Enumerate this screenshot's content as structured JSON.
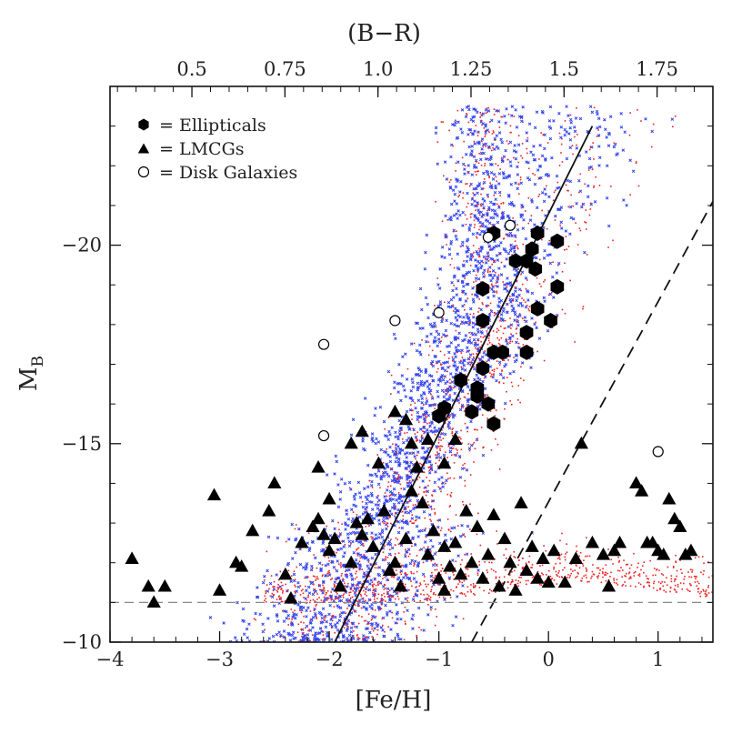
{
  "chart_data": {
    "type": "scatter",
    "xlabel": "[Fe/H]",
    "ylabel": "M",
    "ylabel_sub": "B",
    "top_axis_label": "(B−R)",
    "xlim": [
      -4,
      1.5
    ],
    "ylim": [
      -10,
      -24
    ],
    "top_axis_mapping": {
      "fe_h": [
        -4,
        1.5
      ],
      "b_r": [
        0.28,
        1.9
      ]
    },
    "xticks": [
      -4,
      -3,
      -2,
      -1,
      0,
      1
    ],
    "xtick_labels": [
      "−4",
      "−3",
      "−2",
      "−1",
      "0",
      "1"
    ],
    "yticks": [
      -20,
      -15,
      -10
    ],
    "ytick_labels": [
      "−20",
      "−15",
      "−10"
    ],
    "top_ticks": [
      0.5,
      0.75,
      1.0,
      1.25,
      1.5,
      1.75
    ],
    "top_tick_labels": [
      "0.5",
      "0.75",
      "1.0",
      "1.25",
      "1.5",
      "1.75"
    ],
    "legend": {
      "placement": "top-left",
      "entries": [
        {
          "marker": "filled-hexagon",
          "label": "= Ellipticals"
        },
        {
          "marker": "filled-triangle",
          "label": "= LMCGs"
        },
        {
          "marker": "open-circle",
          "label": "= Disk Galaxies"
        }
      ]
    },
    "series": [
      {
        "name": "Ellipticals",
        "marker": "filled-hexagon",
        "color": "#000000",
        "points": [
          [
            -0.5,
            -20.3
          ],
          [
            -0.1,
            -20.3
          ],
          [
            0.08,
            -20.1
          ],
          [
            -0.15,
            -19.9
          ],
          [
            -0.2,
            -19.6
          ],
          [
            -0.3,
            -19.6
          ],
          [
            -0.12,
            -19.4
          ],
          [
            0.08,
            -18.95
          ],
          [
            -0.6,
            -18.9
          ],
          [
            -0.1,
            -18.4
          ],
          [
            0.02,
            -18.1
          ],
          [
            -0.6,
            -18.1
          ],
          [
            -0.2,
            -17.8
          ],
          [
            -0.5,
            -17.3
          ],
          [
            -0.2,
            -17.3
          ],
          [
            -0.42,
            -17.3
          ],
          [
            -0.6,
            -16.9
          ],
          [
            -0.8,
            -16.6
          ],
          [
            -0.65,
            -16.4
          ],
          [
            -0.65,
            -16.2
          ],
          [
            -0.55,
            -16.0
          ],
          [
            -0.7,
            -15.8
          ],
          [
            -0.95,
            -15.9
          ],
          [
            -1.0,
            -15.7
          ],
          [
            -0.5,
            -15.5
          ]
        ]
      },
      {
        "name": "LMCGs",
        "marker": "filled-triangle",
        "color": "#000000",
        "points": [
          [
            -3.8,
            -12.1
          ],
          [
            -3.6,
            -11.0
          ],
          [
            -3.65,
            -11.4
          ],
          [
            -3.5,
            -11.4
          ],
          [
            -3.05,
            -13.7
          ],
          [
            -3.0,
            -11.3
          ],
          [
            -2.85,
            -12.0
          ],
          [
            -2.8,
            -11.9
          ],
          [
            -2.7,
            -12.8
          ],
          [
            -2.55,
            -13.3
          ],
          [
            -2.5,
            -14.0
          ],
          [
            -2.4,
            -11.7
          ],
          [
            -2.35,
            -11.1
          ],
          [
            -2.25,
            -12.5
          ],
          [
            -2.15,
            -12.9
          ],
          [
            -2.1,
            -13.1
          ],
          [
            -2.05,
            -12.7
          ],
          [
            -2.0,
            -13.6
          ],
          [
            -2.0,
            -12.3
          ],
          [
            -1.95,
            -12.6
          ],
          [
            -1.9,
            -11.4
          ],
          [
            -1.8,
            -12.0
          ],
          [
            -1.75,
            -13.0
          ],
          [
            -1.7,
            -12.7
          ],
          [
            -1.65,
            -13.1
          ],
          [
            -1.6,
            -12.4
          ],
          [
            -1.55,
            -14.5
          ],
          [
            -1.5,
            -13.3
          ],
          [
            -1.45,
            -11.8
          ],
          [
            -1.4,
            -12.0
          ],
          [
            -1.35,
            -11.4
          ],
          [
            -1.3,
            -12.6
          ],
          [
            -1.25,
            -13.8
          ],
          [
            -1.2,
            -14.4
          ],
          [
            -1.15,
            -13.5
          ],
          [
            -1.1,
            -12.2
          ],
          [
            -1.05,
            -12.8
          ],
          [
            -1.0,
            -11.6
          ],
          [
            -0.95,
            -12.4
          ],
          [
            -0.9,
            -11.9
          ],
          [
            -0.85,
            -12.5
          ],
          [
            -0.8,
            -11.7
          ],
          [
            -0.75,
            -13.3
          ],
          [
            -0.7,
            -12.0
          ],
          [
            -0.65,
            -12.9
          ],
          [
            -0.6,
            -11.6
          ],
          [
            -0.55,
            -12.2
          ],
          [
            -0.45,
            -11.4
          ],
          [
            -0.4,
            -12.6
          ],
          [
            -0.35,
            -12.0
          ],
          [
            -0.3,
            -11.3
          ],
          [
            -0.25,
            -13.5
          ],
          [
            -0.2,
            -11.8
          ],
          [
            -0.15,
            -12.4
          ],
          [
            -0.1,
            -11.6
          ],
          [
            -0.05,
            -12.1
          ],
          [
            0.0,
            -11.5
          ],
          [
            0.05,
            -12.3
          ],
          [
            0.15,
            -11.5
          ],
          [
            0.25,
            -12.1
          ],
          [
            0.3,
            -15.0
          ],
          [
            0.4,
            -12.5
          ],
          [
            0.5,
            -12.2
          ],
          [
            0.55,
            -11.4
          ],
          [
            0.6,
            -12.3
          ],
          [
            0.65,
            -12.5
          ],
          [
            0.8,
            -14.0
          ],
          [
            0.85,
            -13.8
          ],
          [
            0.9,
            -12.5
          ],
          [
            0.95,
            -12.5
          ],
          [
            1.0,
            -12.3
          ],
          [
            1.05,
            -12.2
          ],
          [
            1.1,
            -13.6
          ],
          [
            1.15,
            -13.1
          ],
          [
            1.2,
            -12.9
          ],
          [
            1.25,
            -12.2
          ],
          [
            1.3,
            -12.3
          ],
          [
            -1.4,
            -15.8
          ],
          [
            -1.3,
            -15.6
          ],
          [
            -1.1,
            -15.1
          ],
          [
            -1.25,
            -15.0
          ],
          [
            -1.7,
            -15.3
          ],
          [
            -1.8,
            -15.0
          ],
          [
            -2.1,
            -14.4
          ],
          [
            -0.95,
            -14.5
          ],
          [
            -0.5,
            -13.2
          ],
          [
            -0.85,
            -15.1
          ],
          [
            -0.95,
            -11.3
          ]
        ]
      },
      {
        "name": "Disk Galaxies",
        "marker": "open-circle",
        "color": "#000000",
        "points": [
          [
            -0.35,
            -20.5
          ],
          [
            -0.55,
            -20.2
          ],
          [
            -1.4,
            -18.1
          ],
          [
            -1.0,
            -18.3
          ],
          [
            -2.05,
            -17.5
          ],
          [
            -2.05,
            -15.2
          ],
          [
            1.0,
            -14.8
          ]
        ]
      }
    ],
    "reference_lines": [
      {
        "style": "solid",
        "from": [
          -1.95,
          -10
        ],
        "to": [
          0.4,
          -23
        ]
      },
      {
        "style": "dashed",
        "from": [
          -0.7,
          -10
        ],
        "to": [
          1.5,
          -21.1
        ]
      },
      {
        "style": "dashed",
        "from": [
          -4,
          -11
        ],
        "to": [
          1.5,
          -11
        ],
        "color": "#888888"
      }
    ],
    "background_models": [
      {
        "color": "#3344ee",
        "marker": "x",
        "description_region": [
          [
            -3.2,
            -11.0
          ],
          [
            -0.3,
            -24.0
          ]
        ]
      },
      {
        "color": "#ee2222",
        "marker": "dot",
        "description_region": [
          [
            -4.0,
            -10.0
          ],
          [
            1.5,
            -22.0
          ]
        ]
      }
    ]
  }
}
